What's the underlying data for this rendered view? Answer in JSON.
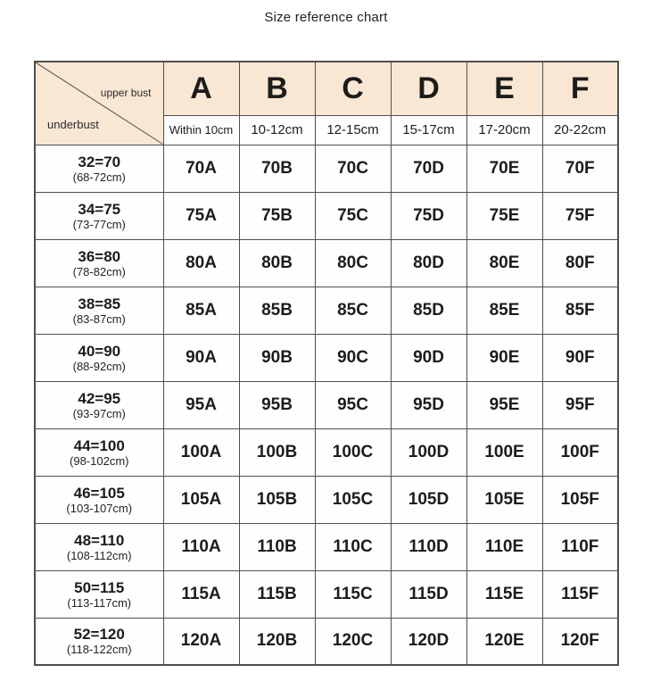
{
  "title": "Size reference chart",
  "chart_data": {
    "type": "table",
    "title": "Size reference chart",
    "corner_labels": {
      "top": "upper bust",
      "bottom": "underbust"
    },
    "columns": [
      {
        "cup": "A",
        "diff": "Within 10cm"
      },
      {
        "cup": "B",
        "diff": "10-12cm"
      },
      {
        "cup": "C",
        "diff": "12-15cm"
      },
      {
        "cup": "D",
        "diff": "15-17cm"
      },
      {
        "cup": "E",
        "diff": "17-20cm"
      },
      {
        "cup": "F",
        "diff": "20-22cm"
      }
    ],
    "rows": [
      {
        "size": "32=70",
        "cm": "(68-72cm)",
        "values": [
          "70A",
          "70B",
          "70C",
          "70D",
          "70E",
          "70F"
        ]
      },
      {
        "size": "34=75",
        "cm": "(73-77cm)",
        "values": [
          "75A",
          "75B",
          "75C",
          "75D",
          "75E",
          "75F"
        ]
      },
      {
        "size": "36=80",
        "cm": "(78-82cm)",
        "values": [
          "80A",
          "80B",
          "80C",
          "80D",
          "80E",
          "80F"
        ]
      },
      {
        "size": "38=85",
        "cm": "(83-87cm)",
        "values": [
          "85A",
          "85B",
          "85C",
          "85D",
          "85E",
          "85F"
        ]
      },
      {
        "size": "40=90",
        "cm": "(88-92cm)",
        "values": [
          "90A",
          "90B",
          "90C",
          "90D",
          "90E",
          "90F"
        ]
      },
      {
        "size": "42=95",
        "cm": "(93-97cm)",
        "values": [
          "95A",
          "95B",
          "95C",
          "95D",
          "95E",
          "95F"
        ]
      },
      {
        "size": "44=100",
        "cm": "(98-102cm)",
        "values": [
          "100A",
          "100B",
          "100C",
          "100D",
          "100E",
          "100F"
        ]
      },
      {
        "size": "46=105",
        "cm": "(103-107cm)",
        "values": [
          "105A",
          "105B",
          "105C",
          "105D",
          "105E",
          "105F"
        ]
      },
      {
        "size": "48=110",
        "cm": "(108-112cm)",
        "values": [
          "110A",
          "110B",
          "110C",
          "110D",
          "110E",
          "110F"
        ]
      },
      {
        "size": "50=115",
        "cm": "(113-117cm)",
        "values": [
          "115A",
          "115B",
          "115C",
          "115D",
          "115E",
          "115F"
        ]
      },
      {
        "size": "52=120",
        "cm": "(118-122cm)",
        "values": [
          "120A",
          "120B",
          "120C",
          "120D",
          "120E",
          "120F"
        ]
      }
    ]
  },
  "colors": {
    "header_bg": "#f9e7d4",
    "border": "#4f4f4f",
    "text": "#1c1c1c",
    "cell_bg": "#fefefe"
  }
}
